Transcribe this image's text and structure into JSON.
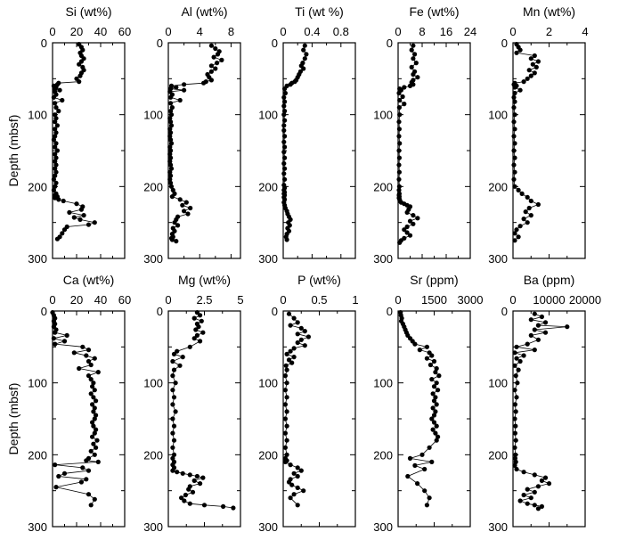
{
  "y_axis_label": "Depth (mbsf)",
  "chart_data": [
    {
      "type": "line",
      "title": "Si (wt%)",
      "xlim": [
        0,
        60
      ],
      "xticks": [
        "0",
        "20",
        "40",
        "60"
      ],
      "ylim": [
        0,
        300
      ],
      "yticks": [
        "0",
        "100",
        "200",
        "300"
      ],
      "x": [
        22,
        24,
        25,
        23,
        24,
        26,
        24,
        22,
        25,
        26,
        24,
        23,
        20,
        22,
        5,
        4,
        1,
        3,
        2,
        6,
        2,
        3,
        1,
        8,
        2,
        3,
        5,
        2,
        3,
        2,
        4,
        2,
        3,
        2,
        1,
        3,
        2,
        4,
        2,
        3,
        2,
        3,
        2,
        3,
        2,
        1,
        3,
        2,
        1,
        3,
        2,
        4,
        2,
        5,
        9,
        20,
        25,
        24,
        14,
        26,
        18,
        23,
        35,
        30,
        12,
        10,
        8,
        6,
        4
      ],
      "y": [
        2,
        6,
        10,
        14,
        18,
        22,
        26,
        30,
        34,
        38,
        42,
        46,
        50,
        54,
        56,
        58,
        60,
        62,
        64,
        66,
        68,
        72,
        76,
        80,
        84,
        90,
        95,
        100,
        105,
        110,
        115,
        120,
        125,
        130,
        135,
        140,
        145,
        150,
        155,
        160,
        165,
        170,
        175,
        180,
        185,
        190,
        195,
        200,
        205,
        210,
        212,
        214,
        216,
        218,
        220,
        224,
        228,
        232,
        236,
        240,
        243,
        246,
        250,
        253,
        256,
        260,
        265,
        270,
        273
      ]
    },
    {
      "type": "line",
      "title": "Al (wt%)",
      "xlim": [
        0,
        9.2
      ],
      "xticks": [
        "0",
        "4",
        "8"
      ],
      "ylim": [
        0,
        300
      ],
      "yticks": [
        "0",
        "100",
        "200",
        "300"
      ],
      "x": [
        5.5,
        6,
        6.5,
        6.3,
        5.8,
        6.8,
        6.2,
        5.5,
        6,
        5.5,
        5,
        5.2,
        5.5,
        4.8,
        4.5,
        2,
        0.4,
        1,
        0.3,
        2,
        0.2,
        0.5,
        0.3,
        1.5,
        0.3,
        0.5,
        0.3,
        0.4,
        0.2,
        0.3,
        0.4,
        0.2,
        0.3,
        0.2,
        0.3,
        0.4,
        0.2,
        0.3,
        0.2,
        0.3,
        0.2,
        0.3,
        0.4,
        0.2,
        0.3,
        0.2,
        0.3,
        0.4,
        0.6,
        0.8,
        0.5,
        1.5,
        2.3,
        1.8,
        2.8,
        2,
        2.5,
        1.2,
        1,
        0.8,
        1.2,
        0.6,
        0.8,
        0.5,
        0.6,
        0.4,
        0.5,
        1
      ],
      "y": [
        4,
        8,
        12,
        16,
        20,
        24,
        28,
        32,
        36,
        40,
        44,
        48,
        52,
        54,
        56,
        58,
        60,
        62,
        64,
        66,
        68,
        72,
        76,
        80,
        84,
        90,
        95,
        100,
        105,
        110,
        115,
        120,
        125,
        130,
        135,
        140,
        145,
        150,
        155,
        160,
        165,
        170,
        175,
        180,
        185,
        190,
        195,
        200,
        205,
        210,
        214,
        218,
        222,
        226,
        230,
        234,
        238,
        242,
        246,
        250,
        254,
        258,
        262,
        266,
        270,
        272,
        274,
        276
      ]
    },
    {
      "type": "line",
      "title": "Ti (wt %)",
      "xlim": [
        0,
        1
      ],
      "xticks": [
        "0",
        "0.4",
        "0.8"
      ],
      "ylim": [
        0,
        300
      ],
      "yticks": [
        "0",
        "100",
        "200",
        "300"
      ],
      "x": [
        0.3,
        0.28,
        0.32,
        0.3,
        0.27,
        0.25,
        0.28,
        0.24,
        0.22,
        0.2,
        0.18,
        0.16,
        0.12,
        0.1,
        0.05,
        0.02,
        0.03,
        0.01,
        0.02,
        0.01,
        0.02,
        0.01,
        0.02,
        0.01,
        0.01,
        0.02,
        0.01,
        0.02,
        0.01,
        0.02,
        0.01,
        0.02,
        0.01,
        0.02,
        0.01,
        0.02,
        0.01,
        0.02,
        0.01,
        0.02,
        0.01,
        0.02,
        0.01,
        0.02,
        0.03,
        0.05,
        0.06,
        0.08,
        0.1,
        0.07,
        0.09,
        0.06,
        0.08,
        0.05,
        0.04,
        0.05
      ],
      "y": [
        4,
        10,
        16,
        22,
        28,
        32,
        36,
        40,
        44,
        48,
        52,
        54,
        56,
        58,
        60,
        64,
        70,
        76,
        82,
        88,
        95,
        100,
        108,
        115,
        122,
        130,
        138,
        145,
        152,
        160,
        168,
        175,
        182,
        190,
        198,
        202,
        205,
        208,
        210,
        212,
        215,
        218,
        222,
        226,
        230,
        234,
        238,
        242,
        246,
        250,
        254,
        258,
        262,
        266,
        270,
        274
      ]
    },
    {
      "type": "line",
      "title": "Fe (wt%)",
      "xlim": [
        0,
        24
      ],
      "xticks": [
        "0",
        "8",
        "16",
        "24"
      ],
      "ylim": [
        0,
        300
      ],
      "yticks": [
        "0",
        "100",
        "200",
        "300"
      ],
      "x": [
        5,
        4.5,
        5.5,
        5,
        6,
        4.5,
        5.5,
        5,
        6.5,
        5,
        4.5,
        5,
        4,
        2,
        0.5,
        1,
        0.3,
        1.5,
        0.5,
        2,
        0.4,
        0.5,
        0.3,
        0.4,
        0.3,
        0.5,
        0.3,
        0.4,
        0.3,
        0.4,
        0.3,
        0.4,
        0.3,
        0.4,
        0.3,
        0.4,
        0.3,
        0.5,
        0.6,
        1,
        2,
        3,
        4,
        3.5,
        3,
        5,
        6.5,
        4,
        5,
        3,
        2,
        3,
        4,
        2,
        1,
        0.5
      ],
      "y": [
        4,
        10,
        16,
        22,
        28,
        34,
        40,
        44,
        48,
        52,
        55,
        58,
        60,
        62,
        64,
        66,
        70,
        75,
        80,
        85,
        90,
        100,
        110,
        120,
        130,
        140,
        150,
        160,
        170,
        180,
        190,
        200,
        205,
        210,
        212,
        214,
        216,
        218,
        220,
        222,
        224,
        226,
        228,
        232,
        236,
        240,
        244,
        248,
        252,
        256,
        260,
        264,
        268,
        272,
        275,
        278
      ]
    },
    {
      "type": "line",
      "title": "Mn (wt%)",
      "xlim": [
        0,
        4
      ],
      "xticks": [
        "0",
        "2",
        "4"
      ],
      "ylim": [
        0,
        300
      ],
      "yticks": [
        "0",
        "100",
        "200",
        "300"
      ],
      "x": [
        0.2,
        0.3,
        0.4,
        0.2,
        1.2,
        1,
        1.4,
        1.1,
        1.3,
        0.9,
        1.2,
        1,
        0.8,
        0.6,
        0.1,
        0.05,
        0.2,
        0.1,
        0.4,
        0.1,
        0.05,
        0.1,
        0.05,
        0.1,
        0.05,
        0.1,
        0.05,
        0.1,
        0.05,
        0.1,
        0.05,
        0.1,
        0.05,
        0.1,
        0.3,
        0.5,
        0.8,
        1,
        1.4,
        0.9,
        0.7,
        1,
        0.6,
        0.8,
        0.4,
        0.2,
        0.1,
        0.3,
        0.1
      ],
      "y": [
        2,
        6,
        10,
        14,
        18,
        22,
        26,
        30,
        34,
        38,
        42,
        46,
        50,
        54,
        56,
        58,
        60,
        62,
        66,
        70,
        76,
        82,
        90,
        100,
        110,
        120,
        130,
        140,
        150,
        160,
        170,
        180,
        190,
        200,
        205,
        210,
        215,
        220,
        225,
        230,
        235,
        240,
        245,
        250,
        255,
        260,
        265,
        270,
        275
      ]
    },
    {
      "type": "line",
      "title": "Ca (wt%)",
      "xlim": [
        0,
        60
      ],
      "xticks": [
        "0",
        "20",
        "40",
        "60"
      ],
      "ylim": [
        0,
        300
      ],
      "yticks": [
        "0",
        "100",
        "200",
        "300"
      ],
      "x": [
        0,
        1,
        2,
        1,
        2,
        1,
        3,
        2,
        12,
        1,
        10,
        2,
        25,
        30,
        18,
        28,
        35,
        30,
        32,
        22,
        38,
        30,
        32,
        34,
        33,
        35,
        32,
        34,
        36,
        33,
        35,
        34,
        36,
        35,
        33,
        34,
        36,
        35,
        33,
        37,
        34,
        36,
        32,
        35,
        30,
        28,
        38,
        2,
        25,
        30,
        10,
        5,
        28,
        24,
        3,
        30,
        35,
        32
      ],
      "y": [
        2,
        6,
        10,
        14,
        18,
        22,
        26,
        30,
        34,
        38,
        42,
        46,
        50,
        54,
        58,
        62,
        66,
        70,
        75,
        80,
        85,
        90,
        95,
        100,
        105,
        110,
        115,
        120,
        125,
        130,
        135,
        140,
        145,
        150,
        155,
        160,
        165,
        170,
        175,
        180,
        185,
        190,
        195,
        200,
        205,
        208,
        210,
        214,
        218,
        222,
        226,
        230,
        234,
        238,
        245,
        255,
        262,
        270
      ]
    },
    {
      "type": "line",
      "title": "Mg (wt%)",
      "xlim": [
        0,
        5
      ],
      "xticks": [
        "0",
        "2.5",
        "5"
      ],
      "ylim": [
        0,
        300
      ],
      "yticks": [
        "0",
        "100",
        "200",
        "300"
      ],
      "x": [
        2,
        2.2,
        1.8,
        2.3,
        2,
        2.1,
        1.9,
        2.4,
        2,
        1.8,
        2.2,
        1.5,
        0.6,
        0.4,
        1,
        0.3,
        0.8,
        0.4,
        0.3,
        0.5,
        0.3,
        0.4,
        0.3,
        0.5,
        0.3,
        0.4,
        0.3,
        0.4,
        0.3,
        0.4,
        0.3,
        0.4,
        0.3,
        0.4,
        0.3,
        0.6,
        1,
        1.5,
        2,
        2.4,
        1.8,
        2.2,
        1.5,
        1.4,
        1.7,
        1.2,
        0.9,
        1.1,
        1.5,
        2.5,
        3.8,
        4.5
      ],
      "y": [
        2,
        6,
        10,
        14,
        18,
        22,
        26,
        30,
        34,
        38,
        42,
        50,
        56,
        60,
        64,
        70,
        76,
        82,
        90,
        100,
        110,
        120,
        130,
        140,
        150,
        160,
        170,
        180,
        190,
        200,
        205,
        210,
        214,
        218,
        222,
        224,
        226,
        228,
        230,
        232,
        236,
        240,
        244,
        248,
        252,
        256,
        260,
        264,
        268,
        270,
        272,
        274
      ]
    },
    {
      "type": "line",
      "title": "P (wt%)",
      "xlim": [
        0,
        1
      ],
      "xticks": [
        "0",
        "0.5",
        "1"
      ],
      "ylim": [
        0,
        300
      ],
      "yticks": [
        "0",
        "100",
        "200",
        "300"
      ],
      "x": [
        0.08,
        0.15,
        0.2,
        0.1,
        0.25,
        0.3,
        0.2,
        0.35,
        0.25,
        0.2,
        0.3,
        0.15,
        0.1,
        0.05,
        0.15,
        0.08,
        0.12,
        0.04,
        0.05,
        0.03,
        0.05,
        0.03,
        0.05,
        0.03,
        0.05,
        0.03,
        0.05,
        0.03,
        0.05,
        0.03,
        0.05,
        0.03,
        0.05,
        0.03,
        0.1,
        0.2,
        0.25,
        0.15,
        0.2,
        0.1,
        0.08,
        0.12,
        0.2,
        0.28,
        0.15,
        0.1,
        0.2
      ],
      "y": [
        4,
        10,
        16,
        20,
        24,
        28,
        32,
        36,
        40,
        44,
        48,
        52,
        56,
        60,
        64,
        68,
        72,
        76,
        82,
        90,
        100,
        110,
        120,
        130,
        140,
        150,
        160,
        170,
        180,
        190,
        200,
        205,
        208,
        210,
        214,
        218,
        222,
        226,
        230,
        234,
        238,
        242,
        246,
        250,
        255,
        260,
        270
      ]
    },
    {
      "type": "line",
      "title": "Sr (ppm)",
      "xlim": [
        0,
        3000
      ],
      "xticks": [
        "0",
        "1500",
        "3000"
      ],
      "ylim": [
        0,
        300
      ],
      "yticks": [
        "0",
        "100",
        "200",
        "300"
      ],
      "x": [
        100,
        120,
        150,
        130,
        200,
        250,
        300,
        350,
        400,
        500,
        600,
        700,
        1200,
        900,
        1300,
        1400,
        1200,
        1500,
        1350,
        1600,
        1550,
        1700,
        1400,
        1600,
        1500,
        1650,
        1450,
        1550,
        1500,
        1600,
        1450,
        1550,
        1500,
        1400,
        1500,
        1600,
        1450,
        1550,
        1650,
        1600,
        1300,
        1000,
        500,
        1400,
        700,
        1100,
        400,
        800,
        1100,
        1300,
        1200
      ],
      "y": [
        2,
        6,
        10,
        14,
        18,
        22,
        26,
        30,
        34,
        38,
        42,
        46,
        50,
        54,
        58,
        62,
        66,
        70,
        75,
        80,
        85,
        90,
        95,
        100,
        105,
        110,
        115,
        120,
        125,
        130,
        135,
        140,
        145,
        150,
        155,
        160,
        165,
        170,
        175,
        180,
        190,
        200,
        205,
        210,
        215,
        220,
        230,
        240,
        250,
        260,
        270
      ]
    },
    {
      "type": "line",
      "title": "Ba (ppm)",
      "xlim": [
        0,
        20000
      ],
      "xticks": [
        "0",
        "10000",
        "20000"
      ],
      "ylim": [
        0,
        300
      ],
      "yticks": [
        "0",
        "100",
        "200",
        "300"
      ],
      "x": [
        6000,
        8000,
        5000,
        9000,
        7000,
        15000,
        6000,
        9000,
        5000,
        7000,
        4000,
        1000,
        6000,
        500,
        3000,
        1000,
        2000,
        500,
        1500,
        800,
        1200,
        500,
        1000,
        600,
        800,
        500,
        700,
        600,
        800,
        500,
        700,
        600,
        800,
        500,
        1000,
        3000,
        6000,
        9000,
        8000,
        10000,
        7000,
        4000,
        6000,
        3000,
        5000,
        2000,
        4000,
        6000,
        8000,
        7000
      ],
      "y": [
        4,
        8,
        12,
        16,
        20,
        22,
        26,
        30,
        34,
        40,
        46,
        50,
        54,
        58,
        62,
        66,
        70,
        76,
        82,
        90,
        100,
        110,
        120,
        130,
        140,
        150,
        160,
        170,
        180,
        190,
        200,
        205,
        210,
        215,
        220,
        224,
        228,
        232,
        236,
        240,
        244,
        248,
        252,
        256,
        260,
        264,
        268,
        270,
        272,
        275
      ]
    }
  ]
}
